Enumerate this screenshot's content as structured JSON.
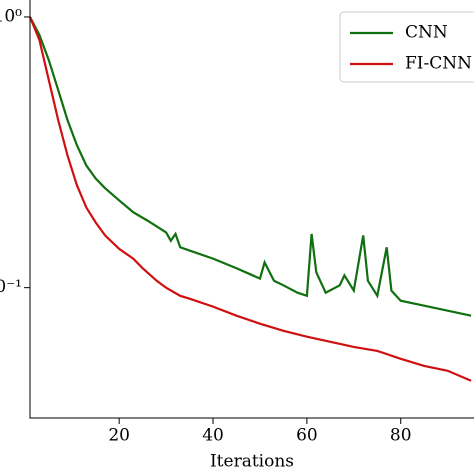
{
  "chart_data": {
    "type": "line",
    "x_label": "Iterations",
    "xlim": [
      1,
      100
    ],
    "xticks": [
      20,
      40,
      60,
      80
    ],
    "ylim": [
      0.033,
      1.07
    ],
    "log_y": true,
    "yticks": [
      {
        "value": 1,
        "label": "10⁰"
      },
      {
        "value": 0.1,
        "label": "10⁻¹"
      }
    ],
    "legend": "upper right",
    "series": [
      {
        "name": "CNN",
        "color": "#107010",
        "x": [
          1,
          3,
          5,
          7,
          9,
          11,
          13,
          15,
          17,
          20,
          23,
          26,
          30,
          31,
          32,
          33,
          35,
          40,
          45,
          50,
          51,
          53,
          55,
          58,
          60,
          61,
          62,
          64,
          67,
          68,
          70,
          72,
          73,
          75,
          77,
          78,
          80,
          85,
          90,
          95
        ],
        "values": [
          1.0,
          0.858,
          0.693,
          0.537,
          0.416,
          0.336,
          0.283,
          0.253,
          0.233,
          0.21,
          0.19,
          0.177,
          0.16,
          0.149,
          0.158,
          0.141,
          0.137,
          0.128,
          0.118,
          0.108,
          0.124,
          0.106,
          0.102,
          0.0958,
          0.0933,
          0.158,
          0.114,
          0.0958,
          0.102,
          0.111,
          0.0975,
          0.156,
          0.106,
          0.0933,
          0.141,
          0.0975,
          0.0895,
          0.0858,
          0.0822,
          0.0788
        ]
      },
      {
        "name": "FI-CNN",
        "color": "#d01010",
        "x": [
          1,
          3,
          5,
          7,
          9,
          11,
          13,
          15,
          17,
          20,
          23,
          25,
          28,
          30,
          33,
          35,
          40,
          45,
          50,
          55,
          60,
          65,
          70,
          75,
          80,
          85,
          90,
          95
        ],
        "values": [
          1.0,
          0.822,
          0.585,
          0.416,
          0.308,
          0.239,
          0.198,
          0.174,
          0.156,
          0.139,
          0.128,
          0.118,
          0.106,
          0.1,
          0.0933,
          0.091,
          0.0851,
          0.0788,
          0.0736,
          0.0693,
          0.0659,
          0.0631,
          0.0604,
          0.0584,
          0.0546,
          0.0514,
          0.0493,
          0.0453
        ]
      }
    ]
  }
}
